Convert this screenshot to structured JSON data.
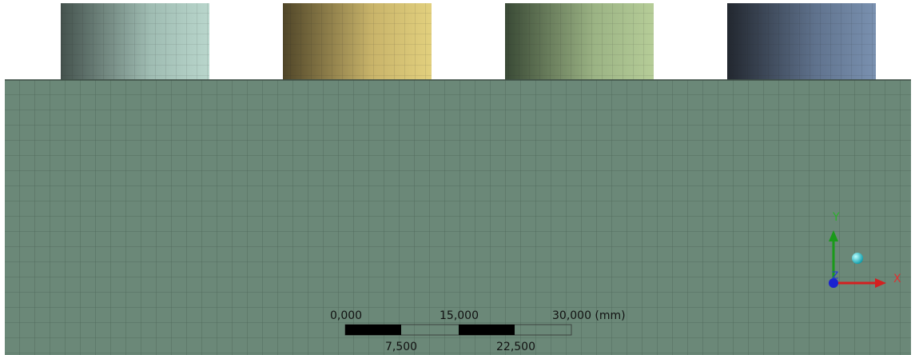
{
  "scale_bar": {
    "top_labels": [
      "0,000",
      "15,000",
      "30,000 (mm)"
    ],
    "bottom_labels": [
      "7,500",
      "22,500"
    ]
  },
  "triad": {
    "y_label": "Y",
    "x_label": "X",
    "z_label": "Z"
  }
}
